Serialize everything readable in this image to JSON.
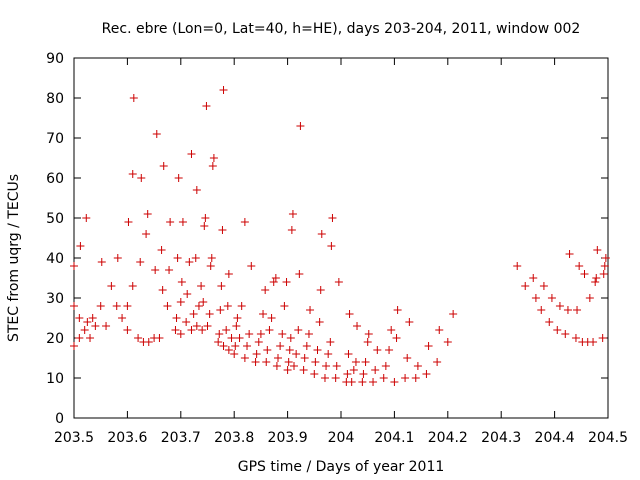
{
  "chart_data": {
    "type": "scatter",
    "title": "Rec. ebre (Lon=0, Lat=40, h=HE), days 203-204, 2011, window 002",
    "xlabel": "GPS time / Days of year 2011",
    "ylabel": "STEC from uqrg / TECUs",
    "xlim": [
      203.5,
      204.5
    ],
    "ylim": [
      0,
      90
    ],
    "xticks": [
      "203.5",
      "203.6",
      "203.7",
      "203.8",
      "203.9",
      "204",
      "204.1",
      "204.2",
      "204.3",
      "204.4",
      "204.5"
    ],
    "yticks": [
      "0",
      "10",
      "20",
      "30",
      "40",
      "50",
      "60",
      "70",
      "80",
      "90"
    ],
    "grid": false,
    "marker": "+",
    "marker_color": "#cc0000",
    "series": [
      {
        "points": [
          [
            203.5,
            18
          ],
          [
            203.5,
            28
          ],
          [
            203.5,
            38
          ],
          [
            203.51,
            20
          ],
          [
            203.51,
            25
          ],
          [
            203.512,
            43
          ],
          [
            203.52,
            22
          ],
          [
            203.523,
            50
          ],
          [
            203.525,
            24
          ],
          [
            203.53,
            20
          ],
          [
            203.535,
            25
          ],
          [
            203.54,
            23
          ],
          [
            203.55,
            28
          ],
          [
            203.552,
            39
          ],
          [
            203.56,
            23
          ],
          [
            203.57,
            33
          ],
          [
            203.58,
            28
          ],
          [
            203.582,
            40
          ],
          [
            203.59,
            25
          ],
          [
            203.6,
            22
          ],
          [
            203.6,
            28
          ],
          [
            203.602,
            49
          ],
          [
            203.61,
            33
          ],
          [
            203.61,
            61
          ],
          [
            203.612,
            80
          ],
          [
            203.62,
            20
          ],
          [
            203.624,
            39
          ],
          [
            203.626,
            60
          ],
          [
            203.63,
            19
          ],
          [
            203.635,
            46
          ],
          [
            203.638,
            51
          ],
          [
            203.64,
            19
          ],
          [
            203.65,
            20
          ],
          [
            203.652,
            37
          ],
          [
            203.655,
            71
          ],
          [
            203.66,
            20
          ],
          [
            203.664,
            42
          ],
          [
            203.666,
            32
          ],
          [
            203.668,
            63
          ],
          [
            203.675,
            28
          ],
          [
            203.678,
            37
          ],
          [
            203.68,
            49
          ],
          [
            203.69,
            22
          ],
          [
            203.692,
            25
          ],
          [
            203.694,
            40
          ],
          [
            203.696,
            60
          ],
          [
            203.7,
            21
          ],
          [
            203.7,
            29
          ],
          [
            203.702,
            34
          ],
          [
            203.704,
            49
          ],
          [
            203.71,
            24
          ],
          [
            203.712,
            31
          ],
          [
            203.716,
            39
          ],
          [
            203.72,
            66
          ],
          [
            203.72,
            22
          ],
          [
            203.724,
            26
          ],
          [
            203.728,
            40
          ],
          [
            203.73,
            57
          ],
          [
            203.73,
            23
          ],
          [
            203.734,
            28
          ],
          [
            203.738,
            33
          ],
          [
            203.74,
            22
          ],
          [
            203.742,
            29
          ],
          [
            203.744,
            48
          ],
          [
            203.746,
            50
          ],
          [
            203.748,
            78
          ],
          [
            203.75,
            23
          ],
          [
            203.754,
            26
          ],
          [
            203.756,
            38
          ],
          [
            203.758,
            40
          ],
          [
            203.76,
            63
          ],
          [
            203.762,
            65
          ],
          [
            203.77,
            19
          ],
          [
            203.772,
            21
          ],
          [
            203.774,
            27
          ],
          [
            203.776,
            33
          ],
          [
            203.778,
            47
          ],
          [
            203.78,
            82
          ],
          [
            203.78,
            18
          ],
          [
            203.785,
            22
          ],
          [
            203.788,
            28
          ],
          [
            203.79,
            36
          ],
          [
            203.79,
            17
          ],
          [
            203.795,
            20
          ],
          [
            203.8,
            16
          ],
          [
            203.802,
            18
          ],
          [
            203.804,
            23
          ],
          [
            203.806,
            25
          ],
          [
            203.81,
            20
          ],
          [
            203.814,
            28
          ],
          [
            203.82,
            49
          ],
          [
            203.82,
            15
          ],
          [
            203.824,
            18
          ],
          [
            203.828,
            21
          ],
          [
            203.832,
            38
          ],
          [
            203.84,
            14
          ],
          [
            203.842,
            16
          ],
          [
            203.846,
            19
          ],
          [
            203.85,
            21
          ],
          [
            203.854,
            26
          ],
          [
            203.858,
            32
          ],
          [
            203.86,
            14
          ],
          [
            203.862,
            17
          ],
          [
            203.866,
            22
          ],
          [
            203.87,
            25
          ],
          [
            203.874,
            34
          ],
          [
            203.878,
            35
          ],
          [
            203.88,
            13
          ],
          [
            203.882,
            15
          ],
          [
            203.886,
            18
          ],
          [
            203.89,
            21
          ],
          [
            203.894,
            28
          ],
          [
            203.898,
            34
          ],
          [
            203.9,
            12
          ],
          [
            203.902,
            14
          ],
          [
            203.904,
            17
          ],
          [
            203.906,
            20
          ],
          [
            203.908,
            47
          ],
          [
            203.91,
            51
          ],
          [
            203.912,
            13
          ],
          [
            203.916,
            16
          ],
          [
            203.92,
            22
          ],
          [
            203.922,
            36
          ],
          [
            203.924,
            73
          ],
          [
            203.93,
            12
          ],
          [
            203.932,
            15
          ],
          [
            203.936,
            18
          ],
          [
            203.94,
            21
          ],
          [
            203.942,
            27
          ],
          [
            203.95,
            11
          ],
          [
            203.952,
            14
          ],
          [
            203.956,
            17
          ],
          [
            203.96,
            24
          ],
          [
            203.962,
            32
          ],
          [
            203.964,
            46
          ],
          [
            203.97,
            10
          ],
          [
            203.972,
            13
          ],
          [
            203.976,
            16
          ],
          [
            203.98,
            19
          ],
          [
            203.982,
            43
          ],
          [
            203.984,
            50
          ],
          [
            203.99,
            10
          ],
          [
            203.992,
            13
          ],
          [
            203.996,
            34
          ],
          [
            204.01,
            9
          ],
          [
            204.012,
            11
          ],
          [
            204.014,
            16
          ],
          [
            204.016,
            26
          ],
          [
            204.02,
            9
          ],
          [
            204.024,
            12
          ],
          [
            204.028,
            14
          ],
          [
            204.03,
            23
          ],
          [
            204.04,
            9
          ],
          [
            204.042,
            11
          ],
          [
            204.046,
            14
          ],
          [
            204.05,
            19
          ],
          [
            204.052,
            21
          ],
          [
            204.06,
            9
          ],
          [
            204.064,
            12
          ],
          [
            204.068,
            17
          ],
          [
            204.08,
            10
          ],
          [
            204.084,
            13
          ],
          [
            204.09,
            17
          ],
          [
            204.094,
            22
          ],
          [
            204.1,
            9
          ],
          [
            204.104,
            20
          ],
          [
            204.106,
            27
          ],
          [
            204.12,
            10
          ],
          [
            204.124,
            15
          ],
          [
            204.128,
            24
          ],
          [
            204.14,
            10
          ],
          [
            204.144,
            13
          ],
          [
            204.16,
            11
          ],
          [
            204.164,
            18
          ],
          [
            204.18,
            14
          ],
          [
            204.184,
            22
          ],
          [
            204.2,
            19
          ],
          [
            204.21,
            26
          ],
          [
            204.33,
            38
          ],
          [
            204.345,
            33
          ],
          [
            204.36,
            35
          ],
          [
            204.365,
            30
          ],
          [
            204.375,
            27
          ],
          [
            204.38,
            33
          ],
          [
            204.39,
            24
          ],
          [
            204.395,
            30
          ],
          [
            204.405,
            22
          ],
          [
            204.41,
            28
          ],
          [
            204.42,
            21
          ],
          [
            204.425,
            27
          ],
          [
            204.428,
            41
          ],
          [
            204.44,
            20
          ],
          [
            204.442,
            27
          ],
          [
            204.446,
            38
          ],
          [
            204.452,
            19
          ],
          [
            204.456,
            36
          ],
          [
            204.462,
            19
          ],
          [
            204.466,
            30
          ],
          [
            204.472,
            19
          ],
          [
            204.476,
            34
          ],
          [
            204.478,
            35
          ],
          [
            204.48,
            42
          ],
          [
            204.49,
            20
          ],
          [
            204.492,
            36
          ],
          [
            204.494,
            38
          ],
          [
            204.496,
            40
          ]
        ]
      }
    ]
  }
}
